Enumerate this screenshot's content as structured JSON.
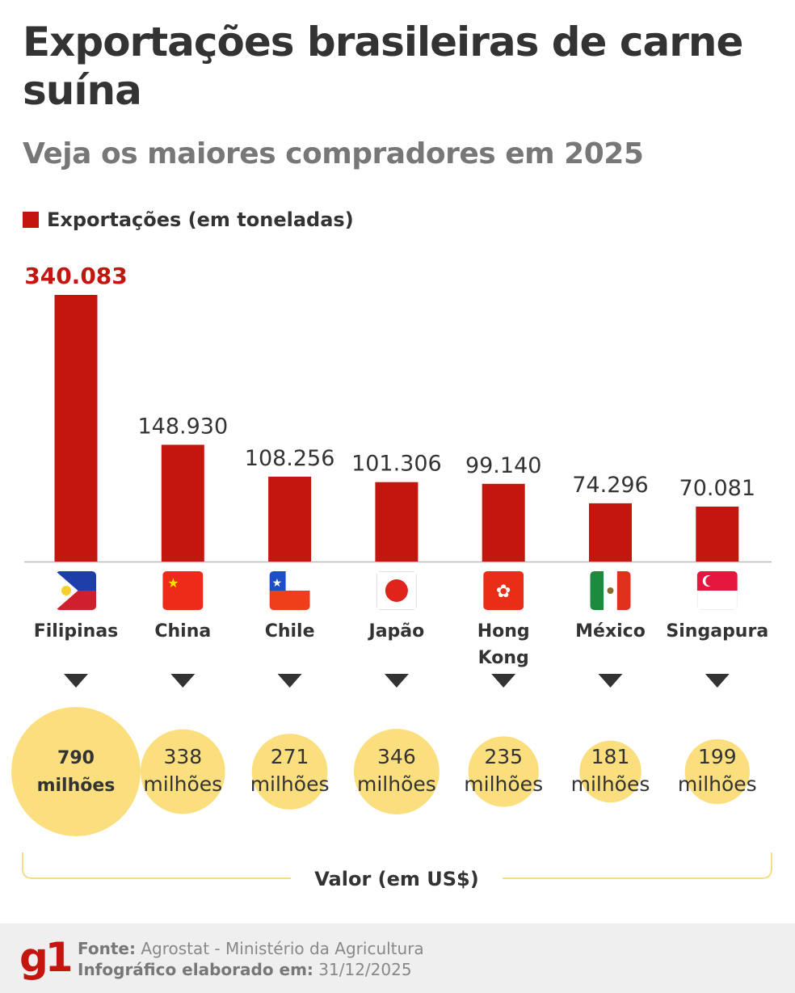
{
  "header": {
    "title": "Exportações brasileiras de carne suína",
    "subtitle": "Veja os maiores compradores em 2025"
  },
  "colors": {
    "bar": "#c4160f",
    "bubble": "#fbdf7e",
    "text": "#333333",
    "highlight_label": "#c4160f"
  },
  "chart_data": {
    "type": "bar",
    "title": "Exportações brasileiras de carne suína",
    "legend": {
      "label": "Exportações (em toneladas)",
      "placement": "top-left"
    },
    "categories": [
      "Filipinas",
      "China",
      "Chile",
      "Japão",
      "Hong Kong",
      "México",
      "Singapura"
    ],
    "flags": [
      "philippines-flag",
      "china-flag",
      "chile-flag",
      "japan-flag",
      "hong-kong-flag",
      "mexico-flag",
      "singapore-flag"
    ],
    "series": [
      {
        "name": "Exportações (em toneladas)",
        "values": [
          340083,
          148930,
          108256,
          101306,
          99140,
          74296,
          70081
        ],
        "labels": [
          "340.083",
          "148.930",
          "108.256",
          "101.306",
          "99.140",
          "74.296",
          "70.081"
        ]
      }
    ],
    "bubbles": {
      "name": "Valor (em US$)",
      "values_millions": [
        790,
        338,
        271,
        346,
        235,
        181,
        199
      ],
      "labels": [
        "790",
        "338",
        "271",
        "346",
        "235",
        "181",
        "199"
      ],
      "unit": "milhões"
    },
    "ylim": [
      0,
      340083
    ],
    "grid": false
  },
  "footer": {
    "logo": "g1",
    "source_label": "Fonte:",
    "source": "Agrostat - Ministério da Agricultura",
    "date_label": "Infográfico elaborado em:",
    "date": "31/12/2025"
  }
}
